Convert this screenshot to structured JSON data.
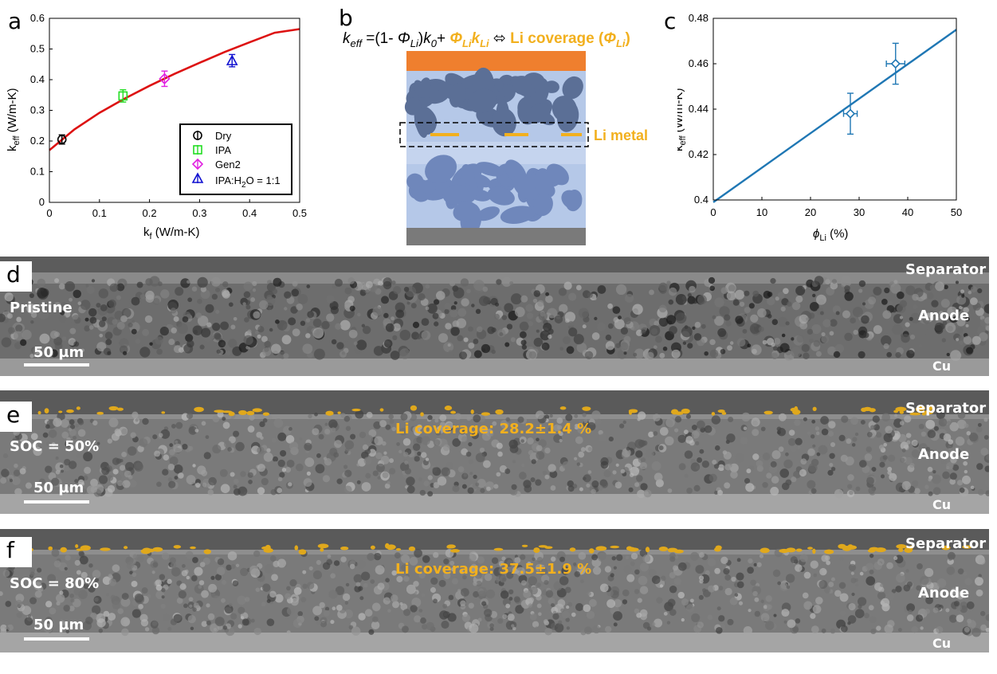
{
  "panels": {
    "a": "a",
    "b": "b",
    "c": "c",
    "d": "d",
    "e": "e",
    "f": "f"
  },
  "chart_data": [
    {
      "type": "scatter",
      "panel": "a",
      "xlabel": "k_f (W/m-K)",
      "ylabel": "k_eff (W/m-K)",
      "xlim": [
        0,
        0.5
      ],
      "ylim": [
        0,
        0.6
      ],
      "xticks": [
        "0",
        "0.1",
        "0.2",
        "0.3",
        "0.4",
        "0.5"
      ],
      "yticks": [
        "0",
        "0.1",
        "0.2",
        "0.3",
        "0.4",
        "0.5",
        "0.6"
      ],
      "series": [
        {
          "name": "Dry",
          "color": "#000000",
          "marker": "circle",
          "x": 0.025,
          "y": 0.205,
          "err": 0.015
        },
        {
          "name": "IPA",
          "color": "#22dd22",
          "marker": "square",
          "x": 0.147,
          "y": 0.347,
          "err": 0.02
        },
        {
          "name": "Gen2",
          "color": "#e020e0",
          "marker": "diamond",
          "x": 0.23,
          "y": 0.403,
          "err": 0.025
        },
        {
          "name": "IPA:H2O = 1:1",
          "color": "#1010d0",
          "marker": "triangle",
          "x": 0.365,
          "y": 0.462,
          "err": 0.02
        }
      ],
      "fit_curve": {
        "color": "#dd1111",
        "x": [
          0,
          0.05,
          0.1,
          0.15,
          0.2,
          0.25,
          0.3,
          0.35,
          0.4,
          0.45,
          0.5
        ],
        "y": [
          0.17,
          0.238,
          0.292,
          0.338,
          0.38,
          0.419,
          0.455,
          0.49,
          0.522,
          0.553,
          0.565
        ]
      },
      "legend_placement": "bottom-right"
    },
    {
      "type": "scatter",
      "panel": "c",
      "xlabel": "ϕ_Li (%)",
      "ylabel": "k_eff (W/m-K)",
      "xlim": [
        0,
        50
      ],
      "ylim": [
        0.4,
        0.48
      ],
      "xticks": [
        "0",
        "10",
        "20",
        "30",
        "40",
        "50"
      ],
      "yticks": [
        "0.4",
        "0.42",
        "0.44",
        "0.46",
        "0.48"
      ],
      "points": [
        {
          "x": 28.2,
          "y": 0.438,
          "xerr": 1.4,
          "yerr": 0.009
        },
        {
          "x": 37.5,
          "y": 0.46,
          "xerr": 1.9,
          "yerr": 0.009
        }
      ],
      "fit_line": {
        "x": [
          0,
          50
        ],
        "y": [
          0.399,
          0.475
        ]
      },
      "color": "#1f77b4"
    }
  ],
  "legend_a": {
    "items": [
      {
        "label": "Dry"
      },
      {
        "label": "IPA"
      },
      {
        "label": "Gen2"
      },
      {
        "label_pre": "IPA:H",
        "label_sub": "2",
        "label_post": "O = 1:1"
      }
    ]
  },
  "axis_a": {
    "ylabel_main": "k",
    "ylabel_sub": "eff",
    "ylabel_unit": " (W/m-K)",
    "xlabel_main": "k",
    "xlabel_sub": "f",
    "xlabel_unit": " (W/m-K)"
  },
  "axis_c": {
    "ylabel_main": "k",
    "ylabel_sub": "eff",
    "ylabel_unit": " (W/m-K)",
    "xlabel_main": "ϕ",
    "xlabel_sub": "Li",
    "xlabel_unit": " (%)"
  },
  "panel_b": {
    "eq_k": "k",
    "eq_eff": "eff",
    "eq_part1": " =(1- ",
    "eq_phi": "Φ",
    "eq_li": "Li",
    "eq_part2": ")",
    "eq_k0": "k",
    "eq_0": "0",
    "eq_plus": "+ ",
    "eq_phi2": "Φ",
    "eq_li2": "Li",
    "eq_k2": "k",
    "eq_li3": "Li",
    "eq_arrow": " ⬄ ",
    "eq_cov": "Li coverage (",
    "eq_phi3": "Φ",
    "eq_li4": "Li",
    "eq_close": ")",
    "li_metal": "Li metal",
    "colors": {
      "top": "#ef7f2e",
      "electrolyte": "#b5c8e8",
      "particle": "#5b6f96",
      "particle2": "#6f87bb",
      "li": "#f2b01e",
      "bottom": "#7a7a7a"
    }
  },
  "micrographs": [
    {
      "id": "d",
      "letter": "d",
      "side": "Pristine",
      "scale": "50 µm",
      "top": "Separator",
      "mid": "Anode",
      "bottom": "Cu",
      "coverage": ""
    },
    {
      "id": "e",
      "letter": "e",
      "side": "SOC = 50%",
      "scale": "50 µm",
      "top": "Separator",
      "mid": "Anode",
      "bottom": "Cu",
      "coverage": "Li coverage: 28.2±1.4 %"
    },
    {
      "id": "f",
      "letter": "f",
      "side": "SOC = 80%",
      "scale": "50 µm",
      "top": "Separator",
      "mid": "Anode",
      "bottom": "Cu",
      "coverage": "Li coverage: 37.5±1.9 %"
    }
  ]
}
